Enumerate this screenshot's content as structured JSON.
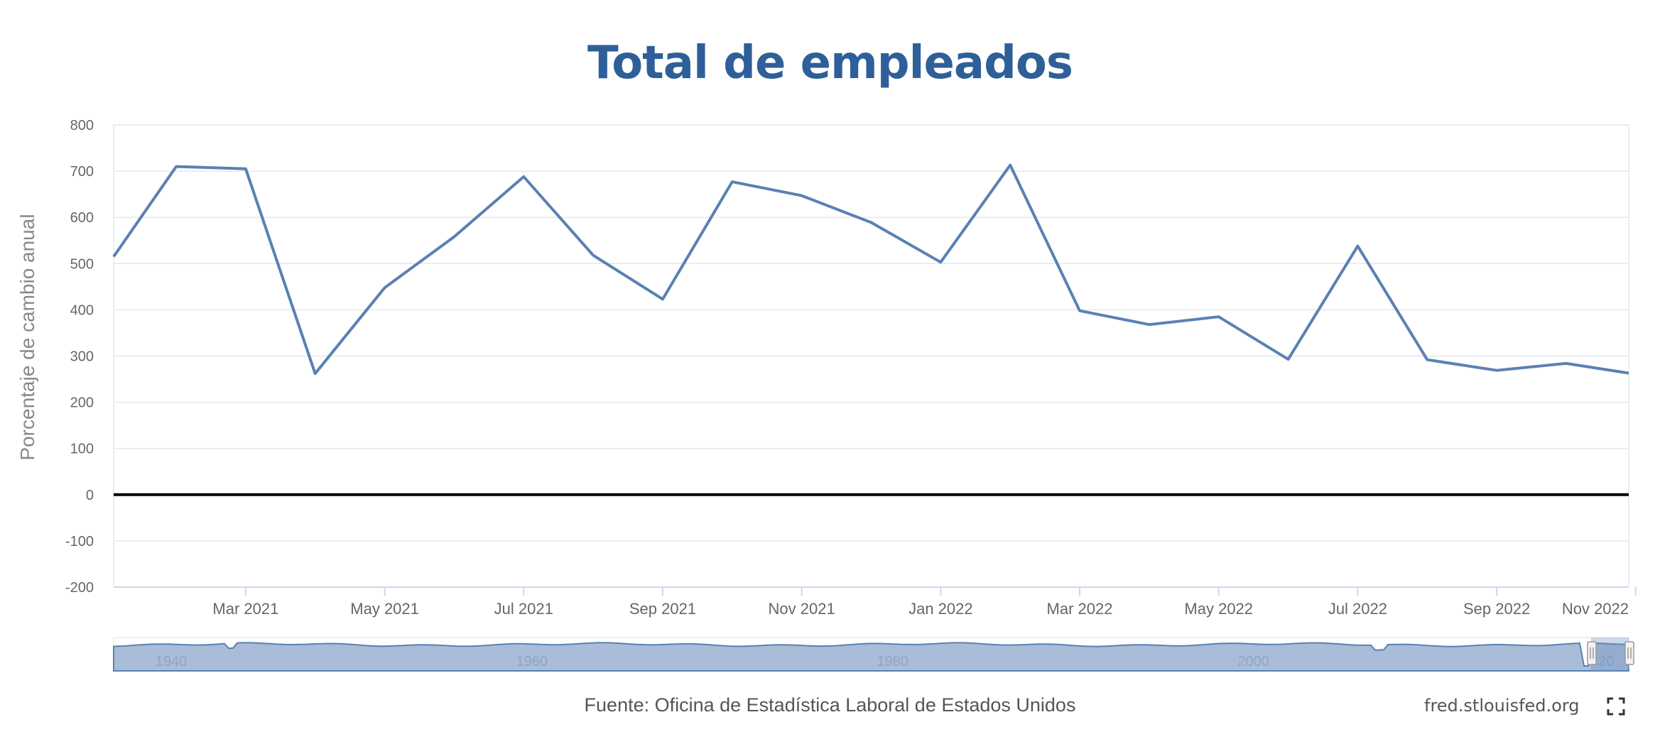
{
  "header": {
    "title": "Total de empleados"
  },
  "footer": {
    "source": "Fuente: Oficina de Estadística Laboral de Estados Unidos",
    "site": "fred.stlouisfed.org",
    "fullscreen_icon": "fullscreen-icon"
  },
  "colors": {
    "title": "#2f5f98",
    "series": "#5a81b2",
    "zero_line": "#000000",
    "navigator_fill": "#a9bcd8"
  },
  "chart_data": {
    "type": "line",
    "title": "Total de empleados",
    "xlabel": "",
    "ylabel": "Porcentaje de cambio anual",
    "ylim": [
      -200,
      800
    ],
    "yticks": [
      800,
      700,
      600,
      500,
      400,
      300,
      200,
      100,
      0,
      -100,
      -200
    ],
    "x_tick_labels": [
      "Mar 2021",
      "May 2021",
      "Jul 2021",
      "Sep 2021",
      "Nov 2021",
      "Jan 2022",
      "Mar 2022",
      "May 2022",
      "Jul 2022",
      "Sep 2022",
      "Nov 2022"
    ],
    "x_tick_month_index": [
      2,
      4,
      6,
      8,
      10,
      12,
      14,
      16,
      18,
      20,
      22
    ],
    "xlim_month_index": [
      0.1,
      21.9
    ],
    "grid": true,
    "series": [
      {
        "name": "Total de empleados",
        "month_index": [
          0.1,
          1,
          2,
          3,
          4,
          5,
          6,
          7,
          8,
          9,
          10,
          11,
          12,
          13,
          14,
          15,
          16,
          17,
          18,
          19,
          20,
          21,
          21.9
        ],
        "values": [
          515,
          710,
          705,
          262,
          448,
          558,
          688,
          518,
          423,
          677,
          647,
          589,
          503,
          713,
          398,
          368,
          385,
          293,
          538,
          292,
          269,
          284,
          263
        ]
      }
    ],
    "navigator": {
      "tick_labels": [
        "1940",
        "1960",
        "1980",
        "2000",
        "20"
      ],
      "tick_years": [
        1940,
        1960,
        1980,
        2000,
        2020
      ],
      "year_range": [
        1938,
        2022
      ]
    }
  }
}
